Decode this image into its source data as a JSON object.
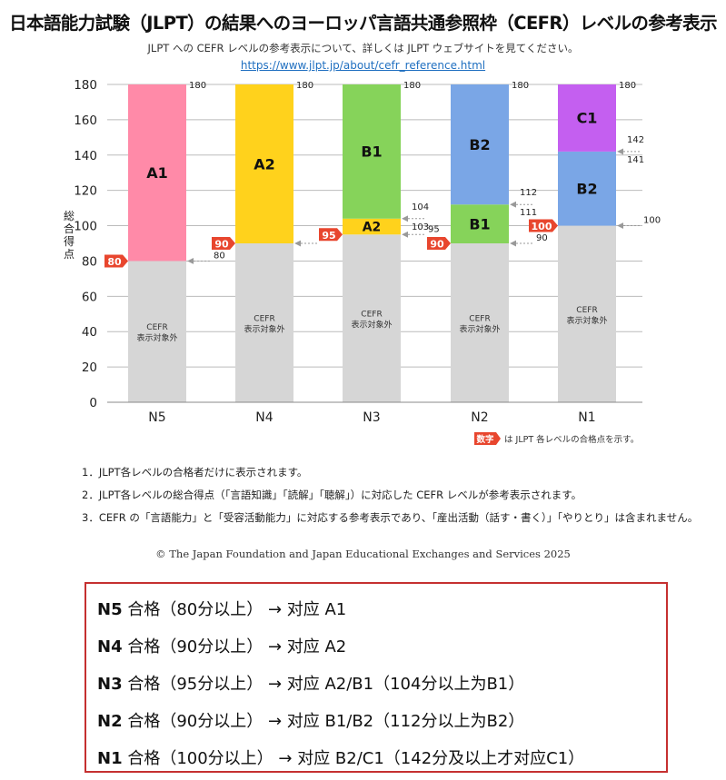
{
  "header": {
    "title": "日本語能力試験（JLPT）の結果へのヨーロッパ言語共通参照枠（CEFR）レベルの参考表示",
    "subtitle": "JLPT への CEFR レベルの参考表示について、詳しくは JLPT ウェブサイトを見てください。",
    "url": "https://www.jlpt.jp/about/cefr_reference.html"
  },
  "colors": {
    "A1": "#ff8aa8",
    "A2": "#ffd21c",
    "B1": "#86d35a",
    "B2": "#7aa6e6",
    "C1": "#c45ff0",
    "none": "#d6d6d6",
    "pass_marker": "#e8462e",
    "grid": "#bbbbbb"
  },
  "chart_data": {
    "type": "bar",
    "stacked": true,
    "title": "日本語能力試験（JLPT）の結果へのヨーロッパ言語共通参照枠（CEFR）レベルの参考表示",
    "ylabel": "総合得点",
    "ylim": [
      0,
      180
    ],
    "yticks": [
      0,
      20,
      40,
      60,
      80,
      100,
      120,
      140,
      160,
      180
    ],
    "grid": true,
    "categories": [
      "N5",
      "N4",
      "N3",
      "N2",
      "N1"
    ],
    "pass_marks": [
      80,
      90,
      95,
      90,
      100
    ],
    "none_label": "CEFR\n表示対象外",
    "levels": [
      {
        "category": "N5",
        "segments": [
          {
            "label": "CEFR\n表示対象外",
            "from": 0,
            "to": 80,
            "band": "none"
          },
          {
            "label": "A1",
            "from": 80,
            "to": 180,
            "band": "A1"
          }
        ],
        "boundary_labels": [
          "180",
          "80"
        ]
      },
      {
        "category": "N4",
        "segments": [
          {
            "label": "CEFR\n表示対象外",
            "from": 0,
            "to": 90,
            "band": "none"
          },
          {
            "label": "A2",
            "from": 90,
            "to": 180,
            "band": "A2"
          }
        ],
        "boundary_labels": [
          "180",
          "90"
        ]
      },
      {
        "category": "N3",
        "segments": [
          {
            "label": "CEFR\n表示対象外",
            "from": 0,
            "to": 95,
            "band": "none"
          },
          {
            "label": "A2",
            "from": 95,
            "to": 104,
            "band": "A2"
          },
          {
            "label": "B1",
            "from": 104,
            "to": 180,
            "band": "B1"
          }
        ],
        "boundary_labels": [
          "180",
          "104",
          "103",
          "95"
        ]
      },
      {
        "category": "N2",
        "segments": [
          {
            "label": "CEFR\n表示対象外",
            "from": 0,
            "to": 90,
            "band": "none"
          },
          {
            "label": "B1",
            "from": 90,
            "to": 112,
            "band": "B1"
          },
          {
            "label": "B2",
            "from": 112,
            "to": 180,
            "band": "B2"
          }
        ],
        "boundary_labels": [
          "180",
          "112",
          "111",
          "90"
        ]
      },
      {
        "category": "N1",
        "segments": [
          {
            "label": "CEFR\n表示対象外",
            "from": 0,
            "to": 100,
            "band": "none"
          },
          {
            "label": "B2",
            "from": 100,
            "to": 142,
            "band": "B2"
          },
          {
            "label": "C1",
            "from": 142,
            "to": 180,
            "band": "C1"
          }
        ],
        "boundary_labels": [
          "180",
          "142",
          "141",
          "100"
        ]
      }
    ],
    "legend": {
      "badge": "数字",
      "text": "は JLPT 各レベルの合格点を示す。"
    }
  },
  "notes": [
    "1．JLPT各レベルの合格者だけに表示されます。",
    "2．JLPT各レベルの総合得点（「言語知識」「読解」「聴解」）に対応した CEFR レベルが参考表示されます。",
    "3．CEFR の「言語能力」と「受容活動能力」に対応する参考表示であり、「産出活動（話す・書く）」「やりとり」は含まれません。"
  ],
  "copyright": "© The Japan Foundation and Japan Educational Exchanges and Services 2025",
  "summary": [
    {
      "level": "N5",
      "text": " 合格（80分以上） → 对应 A1"
    },
    {
      "level": "N4",
      "text": " 合格（90分以上） → 对应 A2"
    },
    {
      "level": "N3",
      "text": " 合格（95分以上） → 对应 A2/B1（104分以上为B1）"
    },
    {
      "level": "N2",
      "text": " 合格（90分以上） → 对应 B1/B2（112分以上为B2）"
    },
    {
      "level": "N1",
      "text": " 合格（100分以上） → 对应 B2/C1（142分及以上才对应C1）"
    }
  ]
}
